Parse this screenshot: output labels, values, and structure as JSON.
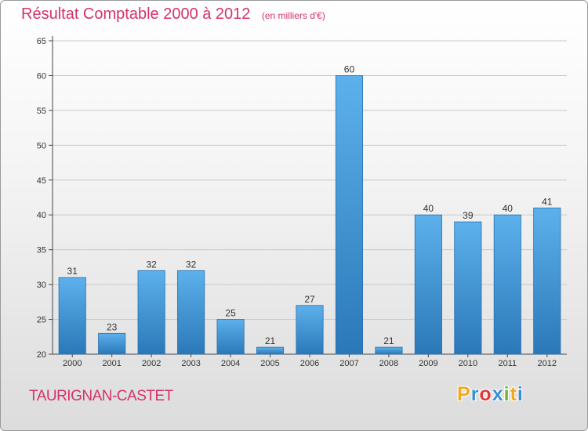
{
  "header": {
    "title": "Résultat Comptable 2000 à 2012",
    "unit": "(en milliers d'€)"
  },
  "footer": {
    "commune": "TAURIGNAN-CASTET",
    "brand": "Proxiti"
  },
  "colors": {
    "accent": "#d6316a",
    "bar_light": "#5cb1ec",
    "bar_dark": "#2b78b8",
    "logo": [
      "#f0a81e",
      "#3a8fd0",
      "#e03a3a",
      "#3a8fd0",
      "#6ab82c",
      "#f0a81e",
      "#3a8fd0"
    ]
  },
  "chart_data": {
    "type": "bar",
    "title": "Résultat Comptable 2000 à 2012",
    "subtitle": "(en milliers d'€)",
    "xlabel": "",
    "ylabel": "",
    "categories": [
      "2000",
      "2001",
      "2002",
      "2003",
      "2004",
      "2005",
      "2006",
      "2007",
      "2008",
      "2009",
      "2010",
      "2011",
      "2012"
    ],
    "values": [
      31,
      23,
      32,
      32,
      25,
      21,
      27,
      60,
      21,
      40,
      39,
      40,
      41
    ],
    "ylim": [
      20,
      65
    ],
    "yticks": [
      20,
      25,
      30,
      35,
      40,
      45,
      50,
      55,
      60,
      65
    ],
    "grid": true,
    "legend": "none"
  }
}
